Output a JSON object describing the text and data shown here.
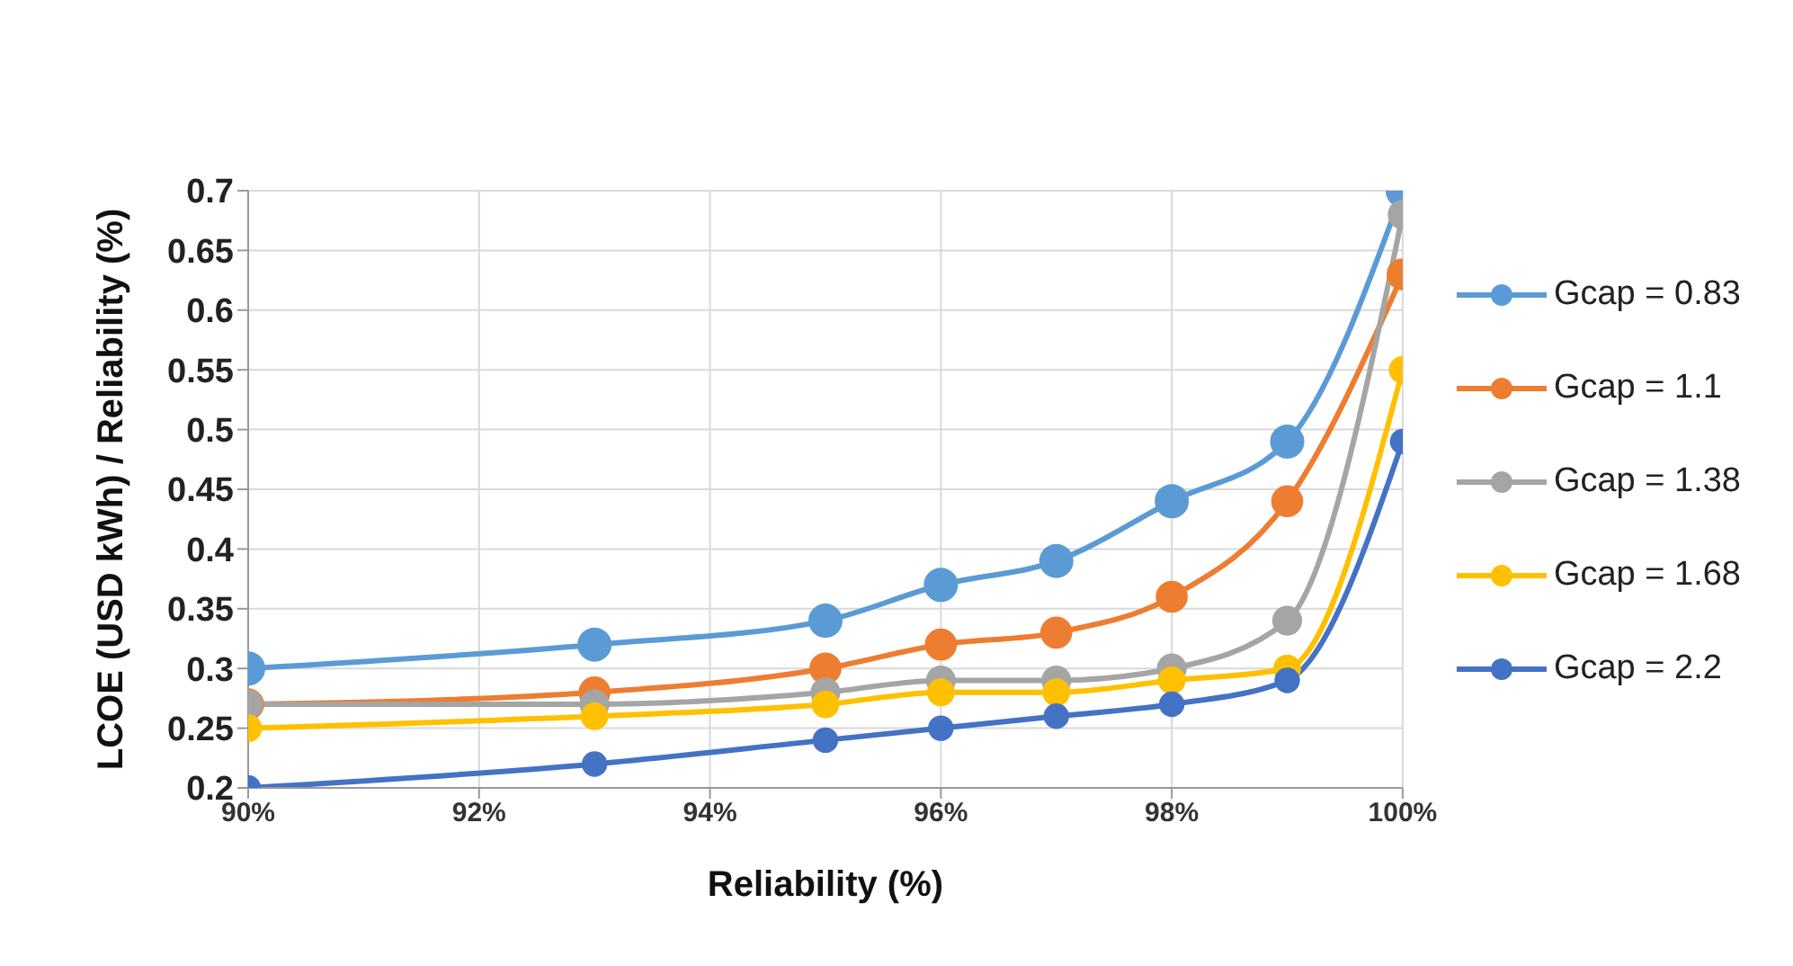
{
  "chart_data": {
    "type": "line",
    "xlabel": "Reliability  (%)",
    "ylabel": "LCOE (USD kWh) / Reliability  (%)",
    "x": [
      90,
      93,
      95,
      96,
      97,
      98,
      99,
      100
    ],
    "series": [
      {
        "name": "Gcap = 0.83",
        "color": "#5b9bd5",
        "values": [
          0.3,
          0.32,
          0.34,
          0.37,
          0.39,
          0.44,
          0.49,
          0.7
        ]
      },
      {
        "name": "Gcap = 1.1",
        "color": "#ed7d31",
        "values": [
          0.27,
          0.28,
          0.3,
          0.32,
          0.33,
          0.36,
          0.44,
          0.63
        ]
      },
      {
        "name": "Gcap = 1.38",
        "color": "#a5a5a5",
        "values": [
          0.27,
          0.27,
          0.28,
          0.29,
          0.29,
          0.3,
          0.34,
          0.68
        ]
      },
      {
        "name": "Gcap = 1.68",
        "color": "#ffc000",
        "values": [
          0.25,
          0.26,
          0.27,
          0.28,
          0.28,
          0.29,
          0.3,
          0.55
        ]
      },
      {
        "name": "Gcap = 2.2",
        "color": "#4472c4",
        "values": [
          0.2,
          0.22,
          0.24,
          0.25,
          0.26,
          0.27,
          0.29,
          0.49
        ]
      }
    ],
    "xlim": [
      90,
      100
    ],
    "xticks": [
      {
        "value": 90,
        "label": "90%"
      },
      {
        "value": 92,
        "label": "92%"
      },
      {
        "value": 94,
        "label": "94%"
      },
      {
        "value": 96,
        "label": "96%"
      },
      {
        "value": 98,
        "label": "98%"
      },
      {
        "value": 100,
        "label": "100%"
      }
    ],
    "ylim": [
      0.2,
      0.7
    ],
    "yticks": [
      0.2,
      0.25,
      0.3,
      0.35,
      0.4,
      0.45,
      0.5,
      0.55,
      0.6,
      0.65,
      0.7
    ],
    "grid": true,
    "legend": "right",
    "marker": "circle",
    "line_style": "solid"
  }
}
